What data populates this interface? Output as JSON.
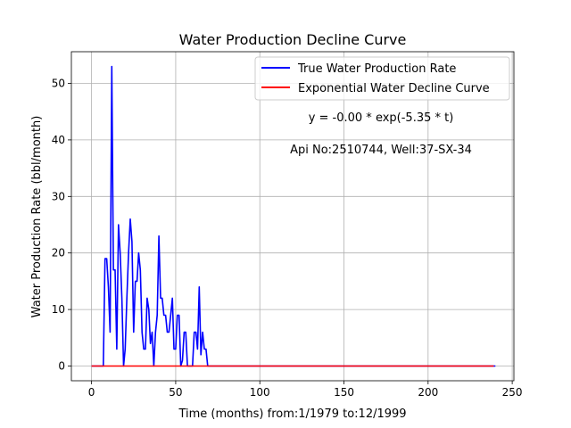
{
  "chart_data": {
    "type": "line",
    "title": "Water Production Decline Curve",
    "xlabel": "Time (months) from:1/1979 to:12/1999",
    "ylabel": "Water Production Rate (bbl/month)",
    "xlim": [
      -12,
      251
    ],
    "ylim": [
      -2.6,
      55.6
    ],
    "xticks": [
      0,
      50,
      100,
      150,
      200,
      250
    ],
    "yticks": [
      0,
      10,
      20,
      30,
      40,
      50
    ],
    "grid": true,
    "legend_position": "top-right",
    "annotations": [
      "y = -0.00 * exp(-5.35 * t)",
      "Api No:2510744, Well:37-SX-34"
    ],
    "series": [
      {
        "name": "True Water Production Rate",
        "color": "#0000ff",
        "x": [
          0,
          1,
          2,
          3,
          4,
          5,
          6,
          7,
          8,
          9,
          10,
          11,
          12,
          13,
          14,
          15,
          16,
          17,
          18,
          19,
          20,
          21,
          22,
          23,
          24,
          25,
          26,
          27,
          28,
          29,
          30,
          31,
          32,
          33,
          34,
          35,
          36,
          37,
          38,
          39,
          40,
          41,
          42,
          43,
          44,
          45,
          46,
          47,
          48,
          49,
          50,
          51,
          52,
          53,
          54,
          55,
          56,
          57,
          58,
          59,
          60,
          61,
          62,
          63,
          64,
          65,
          66,
          67,
          68,
          69,
          70,
          71,
          72,
          240
        ],
        "y": [
          0,
          0,
          0,
          0,
          0,
          0,
          0,
          0,
          19,
          19,
          14,
          6,
          53,
          17,
          17,
          3,
          25,
          20,
          12,
          0,
          3,
          12,
          20,
          26,
          22,
          6,
          15,
          15,
          20,
          17,
          6,
          3,
          3,
          12,
          10,
          4,
          6,
          0,
          6,
          9,
          23,
          12,
          12,
          9,
          9,
          6,
          6,
          9,
          12,
          3,
          3,
          9,
          9,
          0,
          1,
          6,
          6,
          0,
          0,
          0,
          0,
          6,
          6,
          3,
          14,
          2,
          6,
          3,
          3,
          0,
          0,
          0,
          0,
          0
        ]
      },
      {
        "name": "Exponential Water Decline Curve",
        "color": "#ff0000",
        "x": [
          0,
          239
        ],
        "y": [
          0,
          0
        ]
      }
    ]
  }
}
